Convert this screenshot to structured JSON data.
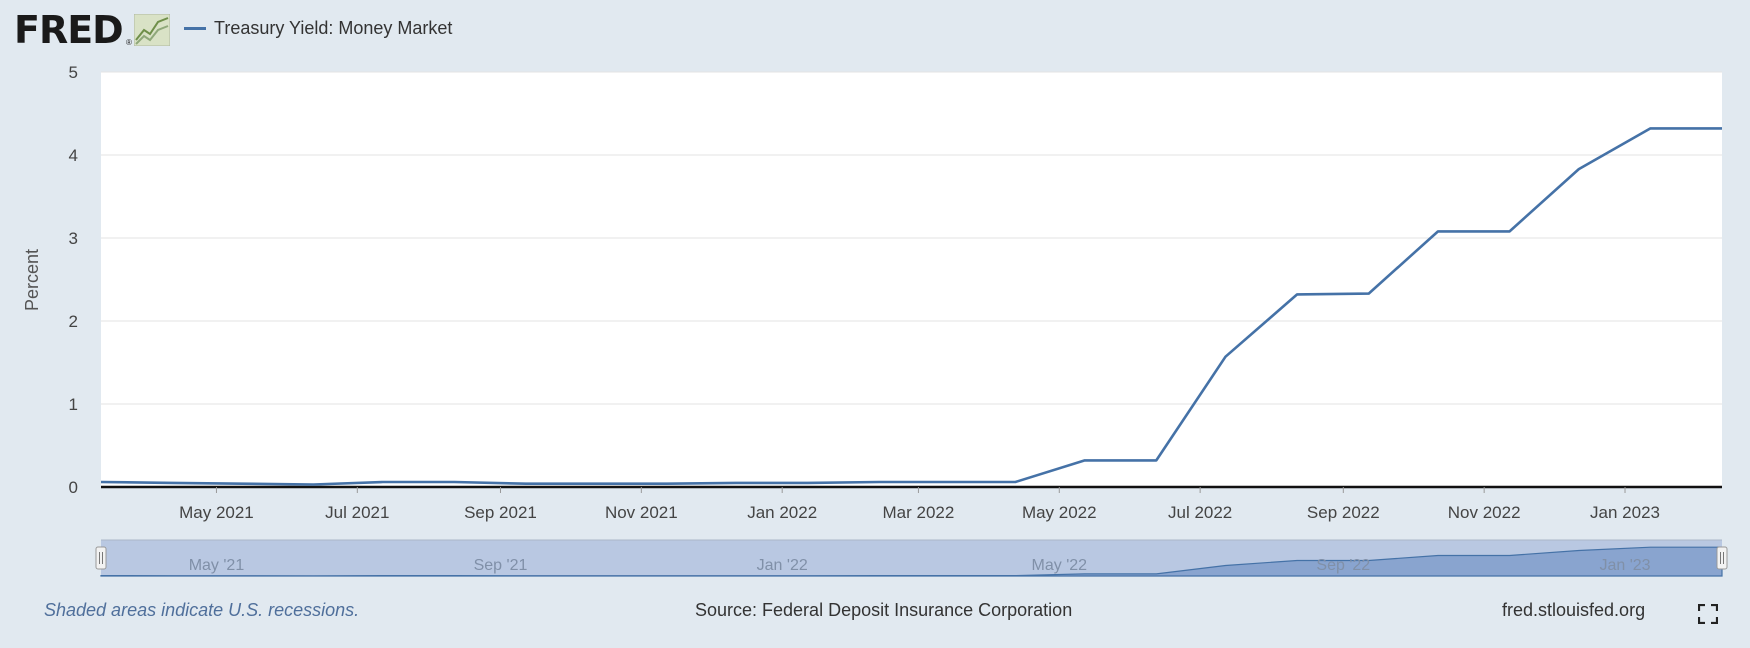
{
  "header": {
    "logo_text": "FRED",
    "logo_mark": "®",
    "legend_label": "Treasury Yield: Money Market",
    "series_color": "#4572a7"
  },
  "chart_data": {
    "type": "line",
    "ylabel": "Percent",
    "ylim": [
      0,
      5
    ],
    "yticks": [
      0,
      1,
      2,
      3,
      4,
      5
    ],
    "xlim": [
      "2021-03-12",
      "2023-02-12"
    ],
    "xticks": [
      {
        "date": "2021-05-01",
        "label": "May 2021"
      },
      {
        "date": "2021-07-01",
        "label": "Jul 2021"
      },
      {
        "date": "2021-09-01",
        "label": "Sep 2021"
      },
      {
        "date": "2021-11-01",
        "label": "Nov 2021"
      },
      {
        "date": "2022-01-01",
        "label": "Jan 2022"
      },
      {
        "date": "2022-03-01",
        "label": "Mar 2022"
      },
      {
        "date": "2022-05-01",
        "label": "May 2022"
      },
      {
        "date": "2022-07-01",
        "label": "Jul 2022"
      },
      {
        "date": "2022-09-01",
        "label": "Sep 2022"
      },
      {
        "date": "2022-11-01",
        "label": "Nov 2022"
      },
      {
        "date": "2023-01-01",
        "label": "Jan 2023"
      }
    ],
    "navigator_labels": [
      {
        "date": "2021-05-01",
        "label": "May '21"
      },
      {
        "date": "2021-09-01",
        "label": "Sep '21"
      },
      {
        "date": "2022-01-01",
        "label": "Jan '22"
      },
      {
        "date": "2022-05-01",
        "label": "May '22"
      },
      {
        "date": "2022-09-01",
        "label": "Sep '22"
      },
      {
        "date": "2023-01-01",
        "label": "Jan '23"
      }
    ],
    "series": [
      {
        "name": "Treasury Yield: Money Market",
        "x": [
          "2021-03-12",
          "2021-04-12",
          "2021-05-12",
          "2021-06-12",
          "2021-07-12",
          "2021-08-12",
          "2021-09-12",
          "2021-10-12",
          "2021-11-12",
          "2021-12-12",
          "2022-01-12",
          "2022-02-12",
          "2022-03-12",
          "2022-04-12",
          "2022-05-12",
          "2022-06-12",
          "2022-07-12",
          "2022-08-12",
          "2022-09-12",
          "2022-10-12",
          "2022-11-12",
          "2022-12-12",
          "2023-01-12",
          "2023-02-12"
        ],
        "y": [
          0.06,
          0.05,
          0.04,
          0.03,
          0.06,
          0.06,
          0.04,
          0.04,
          0.04,
          0.05,
          0.05,
          0.06,
          0.06,
          0.06,
          0.32,
          0.32,
          1.57,
          2.32,
          2.33,
          3.08,
          3.08,
          3.83,
          4.32,
          4.32
        ]
      }
    ],
    "grid": true,
    "legend": "top-left"
  },
  "footer": {
    "recession_note": "Shaded areas indicate U.S. recessions.",
    "source": "Source: Federal Deposit Insurance Corporation",
    "site": "fred.stlouisfed.org"
  }
}
